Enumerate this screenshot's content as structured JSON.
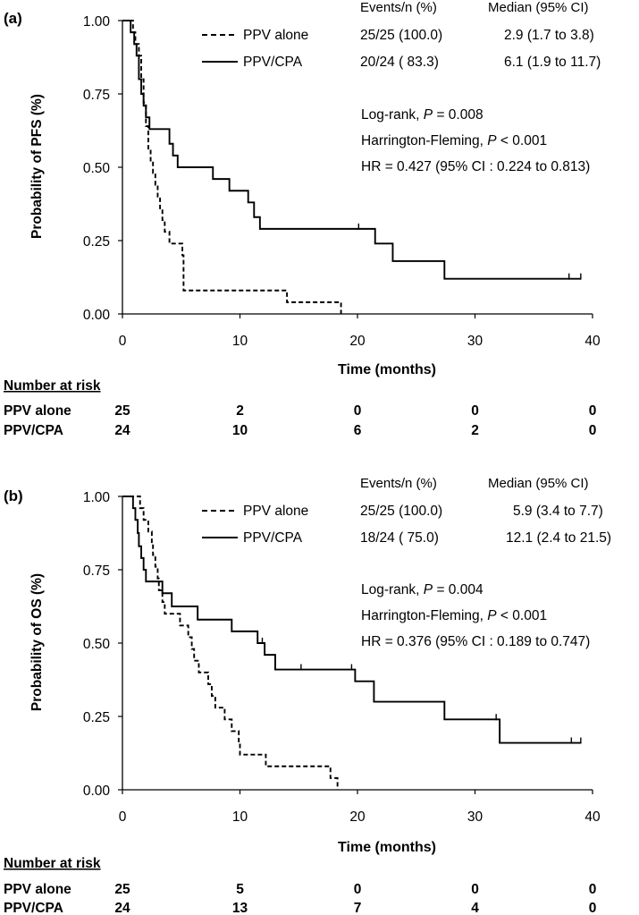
{
  "chart_data": [
    {
      "type": "line",
      "panel_label": "(a)",
      "ylabel": "Probability of PFS (%)",
      "xlabel": "Time (months)",
      "xlim": [
        0,
        40
      ],
      "ylim": [
        0,
        1
      ],
      "x_ticks": [
        "0",
        "10",
        "20",
        "30",
        "40"
      ],
      "y_ticks": [
        "0.00",
        "0.25",
        "0.50",
        "0.75",
        "1.00"
      ],
      "grid": false,
      "legend_position": "top",
      "legend": {
        "header_events": "Events/n (%)",
        "header_median": "Median (95% CI)",
        "rows": [
          {
            "name": "PPV alone",
            "style": "dashed",
            "events": "25/25 (100.0)",
            "median": "2.9 (1.7 to 3.8)"
          },
          {
            "name": "PPV/CPA",
            "style": "solid",
            "events": "20/24 ( 83.3)",
            "median": "6.1 (1.9 to 11.7)"
          }
        ]
      },
      "stats": {
        "logrank_prefix": "Log-rank, ",
        "logrank_p": "P",
        "logrank_value": " = 0.008",
        "hf_prefix": "Harrington-Fleming, ",
        "hf_p": "P",
        "hf_value": " < 0.001",
        "hr": "HR = 0.427 (95% CI : 0.224 to 0.813)"
      },
      "series": [
        {
          "name": "PPV alone",
          "style": "dashed",
          "steps": [
            [
              0,
              1.0
            ],
            [
              0.9,
              0.96
            ],
            [
              1.1,
              0.92
            ],
            [
              1.4,
              0.88
            ],
            [
              1.6,
              0.8
            ],
            [
              1.8,
              0.72
            ],
            [
              2.0,
              0.64
            ],
            [
              2.2,
              0.56
            ],
            [
              2.4,
              0.52
            ],
            [
              2.6,
              0.48
            ],
            [
              2.8,
              0.44
            ],
            [
              3.0,
              0.4
            ],
            [
              3.2,
              0.36
            ],
            [
              3.4,
              0.32
            ],
            [
              3.6,
              0.28
            ],
            [
              4.0,
              0.24
            ],
            [
              5.1,
              0.2
            ],
            [
              5.2,
              0.08
            ],
            [
              14.0,
              0.04
            ],
            [
              18.6,
              0.0
            ]
          ],
          "censored": []
        },
        {
          "name": "PPV/CPA",
          "style": "solid",
          "steps": [
            [
              0,
              1.0
            ],
            [
              0.7,
              0.96
            ],
            [
              1.0,
              0.92
            ],
            [
              1.2,
              0.88
            ],
            [
              1.4,
              0.8
            ],
            [
              1.6,
              0.75
            ],
            [
              1.8,
              0.71
            ],
            [
              2.0,
              0.67
            ],
            [
              2.3,
              0.63
            ],
            [
              4.0,
              0.58
            ],
            [
              4.3,
              0.54
            ],
            [
              4.7,
              0.5
            ],
            [
              7.7,
              0.46
            ],
            [
              9.1,
              0.42
            ],
            [
              10.7,
              0.38
            ],
            [
              11.2,
              0.33
            ],
            [
              11.7,
              0.29
            ],
            [
              21.5,
              0.24
            ],
            [
              23.0,
              0.18
            ],
            [
              27.4,
              0.12
            ]
          ],
          "end_x": 39.0,
          "censored": [
            [
              20.1,
              0.29
            ],
            [
              38.0,
              0.12
            ],
            [
              39.0,
              0.12
            ]
          ]
        }
      ],
      "risk_table": {
        "title": "Number at risk",
        "time_points": [
          0,
          10,
          20,
          30,
          40
        ],
        "rows": [
          {
            "label": "PPV alone",
            "values": [
              "25",
              "2",
              "0",
              "0",
              "0"
            ]
          },
          {
            "label": "PPV/CPA",
            "values": [
              "24",
              "10",
              "6",
              "2",
              "0"
            ]
          }
        ]
      }
    },
    {
      "type": "line",
      "panel_label": "(b)",
      "ylabel": "Probability of OS (%)",
      "xlabel": "Time (months)",
      "xlim": [
        0,
        40
      ],
      "ylim": [
        0,
        1
      ],
      "x_ticks": [
        "0",
        "10",
        "20",
        "30",
        "40"
      ],
      "y_ticks": [
        "0.00",
        "0.25",
        "0.50",
        "0.75",
        "1.00"
      ],
      "grid": false,
      "legend_position": "top",
      "legend": {
        "header_events": "Events/n (%)",
        "header_median": "Median (95% CI)",
        "rows": [
          {
            "name": "PPV alone",
            "style": "dashed",
            "events": "25/25 (100.0)",
            "median": "5.9 (3.4 to 7.7)"
          },
          {
            "name": "PPV/CPA",
            "style": "solid",
            "events": "18/24 ( 75.0)",
            "median": "12.1 (2.4 to 21.5)"
          }
        ]
      },
      "stats": {
        "logrank_prefix": "Log-rank, ",
        "logrank_p": "P",
        "logrank_value": " = 0.004",
        "hf_prefix": "Harrington-Fleming, ",
        "hf_p": "P",
        "hf_value": " < 0.001",
        "hr": "HR = 0.376 (95% CI : 0.189 to 0.747)"
      },
      "series": [
        {
          "name": "PPV alone",
          "style": "dashed",
          "steps": [
            [
              0,
              1.0
            ],
            [
              1.5,
              0.96
            ],
            [
              1.8,
              0.92
            ],
            [
              2.2,
              0.88
            ],
            [
              2.5,
              0.84
            ],
            [
              2.6,
              0.8
            ],
            [
              2.8,
              0.76
            ],
            [
              3.0,
              0.72
            ],
            [
              3.1,
              0.68
            ],
            [
              3.4,
              0.64
            ],
            [
              3.6,
              0.6
            ],
            [
              4.9,
              0.56
            ],
            [
              5.6,
              0.52
            ],
            [
              5.9,
              0.48
            ],
            [
              6.1,
              0.44
            ],
            [
              6.5,
              0.4
            ],
            [
              7.3,
              0.36
            ],
            [
              7.6,
              0.32
            ],
            [
              7.9,
              0.28
            ],
            [
              8.7,
              0.24
            ],
            [
              9.3,
              0.2
            ],
            [
              9.9,
              0.16
            ],
            [
              10.0,
              0.12
            ],
            [
              12.2,
              0.08
            ],
            [
              17.7,
              0.04
            ],
            [
              18.3,
              0.0
            ]
          ],
          "censored": []
        },
        {
          "name": "PPV/CPA",
          "style": "solid",
          "steps": [
            [
              0,
              1.0
            ],
            [
              0.9,
              0.96
            ],
            [
              1.1,
              0.92
            ],
            [
              1.3,
              0.875
            ],
            [
              1.4,
              0.83
            ],
            [
              1.6,
              0.79
            ],
            [
              1.8,
              0.75
            ],
            [
              2.0,
              0.71
            ],
            [
              3.4,
              0.67
            ],
            [
              4.2,
              0.625
            ],
            [
              6.4,
              0.58
            ],
            [
              9.3,
              0.54
            ],
            [
              11.5,
              0.5
            ],
            [
              12.1,
              0.46
            ],
            [
              13.0,
              0.41
            ],
            [
              19.8,
              0.37
            ],
            [
              21.4,
              0.3
            ],
            [
              27.4,
              0.24
            ],
            [
              32.1,
              0.16
            ]
          ],
          "end_x": 39.0,
          "censored": [
            [
              11.9,
              0.5
            ],
            [
              15.2,
              0.41
            ],
            [
              19.5,
              0.41
            ],
            [
              31.8,
              0.24
            ],
            [
              38.2,
              0.16
            ],
            [
              39.0,
              0.16
            ]
          ]
        }
      ],
      "risk_table": {
        "title": "Number at risk",
        "time_points": [
          0,
          10,
          20,
          30,
          40
        ],
        "rows": [
          {
            "label": "PPV alone",
            "values": [
              "25",
              "5",
              "0",
              "0",
              "0"
            ]
          },
          {
            "label": "PPV/CPA",
            "values": [
              "24",
              "13",
              "7",
              "4",
              "0"
            ]
          }
        ]
      }
    }
  ]
}
